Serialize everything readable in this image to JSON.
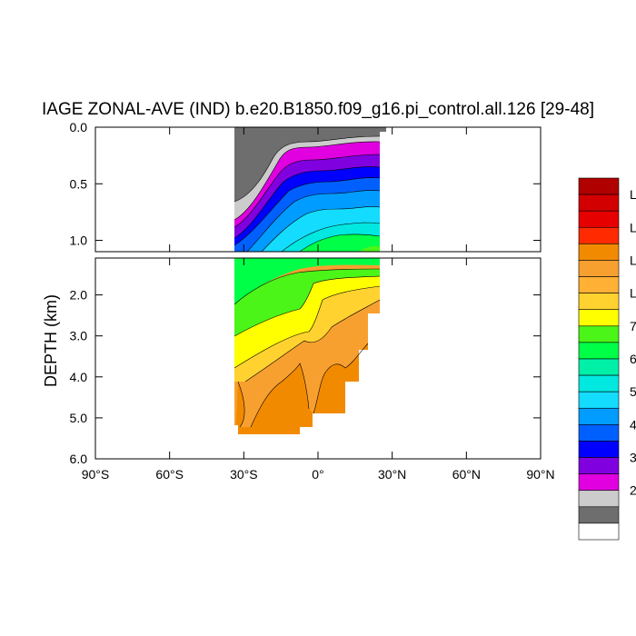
{
  "chart_data": {
    "type": "heatmap",
    "title": "IAGE ZONAL-AVE (IND) b.e20.B1850.f09_g16.pi_control.all.126 [29-48]",
    "ylabel": "DEPTH (km)",
    "xlabel": "",
    "xlim": [
      -90,
      90
    ],
    "ylim_top_panel": [
      0.0,
      1.1
    ],
    "ylim_bottom_panel": [
      1.1,
      6.0
    ],
    "x_ticks": [
      "90°S",
      "60°S",
      "30°S",
      "0°",
      "30°N",
      "60°N",
      "90°N"
    ],
    "y_ticks_top": [
      "0.0",
      "0.5",
      "1.0"
    ],
    "y_ticks_bottom": [
      "2.0",
      "3.0",
      "4.0",
      "5.0",
      "6.0"
    ],
    "data_extent_lat": [
      -33,
      25
    ],
    "grid": false,
    "legend": "right",
    "colorbar": {
      "labels": [
        "L",
        "L",
        "L",
        "L",
        "7",
        "6",
        "5",
        "4",
        "3",
        "2"
      ],
      "colors": [
        "#b00000",
        "#d20000",
        "#e60000",
        "#ff2a00",
        "#f28a00",
        "#f7a030",
        "#ffb035",
        "#ffd22f",
        "#ffff00",
        "#4bf518",
        "#00ff47",
        "#00f0a8",
        "#00e8e0",
        "#14dcff",
        "#009cff",
        "#0060ff",
        "#0000ff",
        "#8000e0",
        "#e000e0",
        "#cccccc",
        "#6e6e6e",
        "#ffffff"
      ]
    }
  }
}
